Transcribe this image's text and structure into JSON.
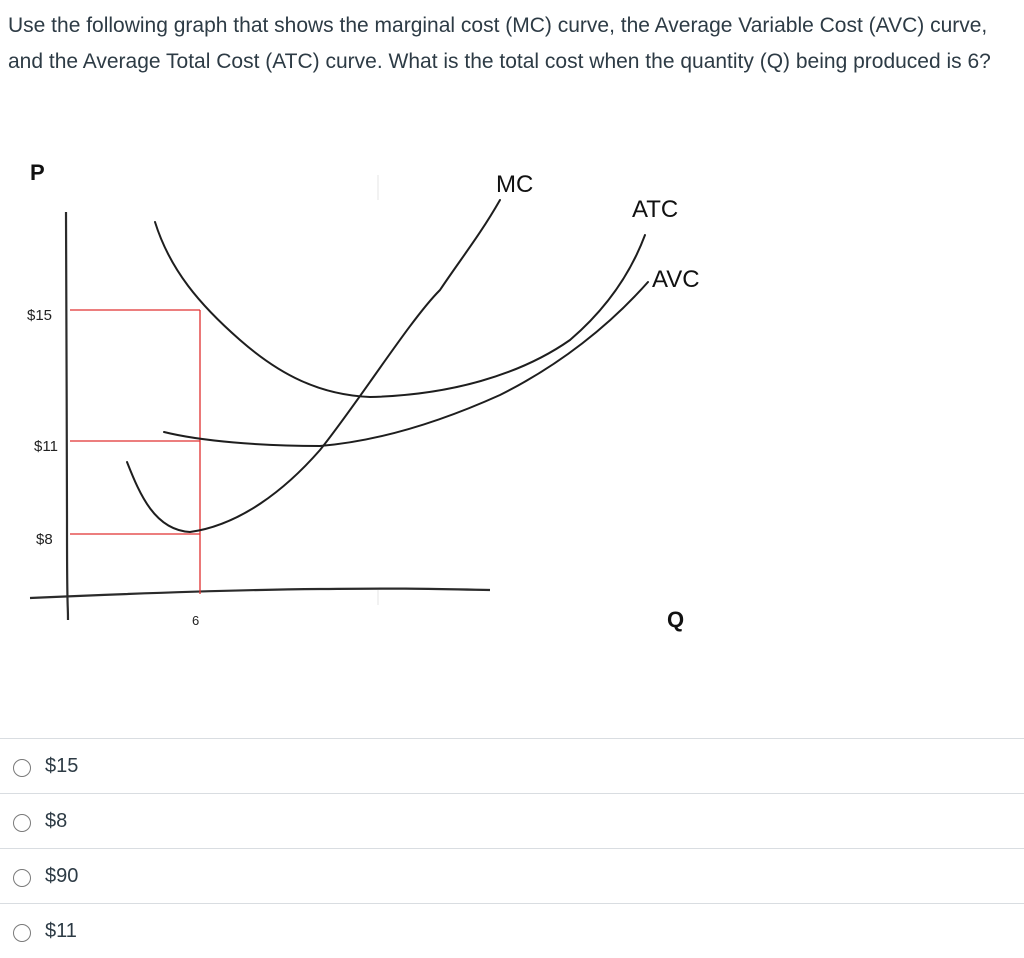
{
  "question": {
    "text": "Use the following graph that shows the marginal cost (MC) curve, the Average Variable Cost (AVC) curve, and the Average Total Cost (ATC) curve. What is the total cost when the quantity (Q) being produced is 6?"
  },
  "graph": {
    "y_axis_label": "P",
    "x_axis_label": "Q",
    "price_ticks": [
      "$15",
      "$11",
      "$8"
    ],
    "quantity_tick": "6",
    "curves": {
      "mc": "MC",
      "atc": "ATC",
      "avc": "AVC"
    },
    "colors": {
      "guide_lines": "#e03030",
      "curves": "#222222"
    }
  },
  "answers": [
    {
      "label": "$15"
    },
    {
      "label": "$8"
    },
    {
      "label": "$90"
    },
    {
      "label": "$11"
    }
  ]
}
